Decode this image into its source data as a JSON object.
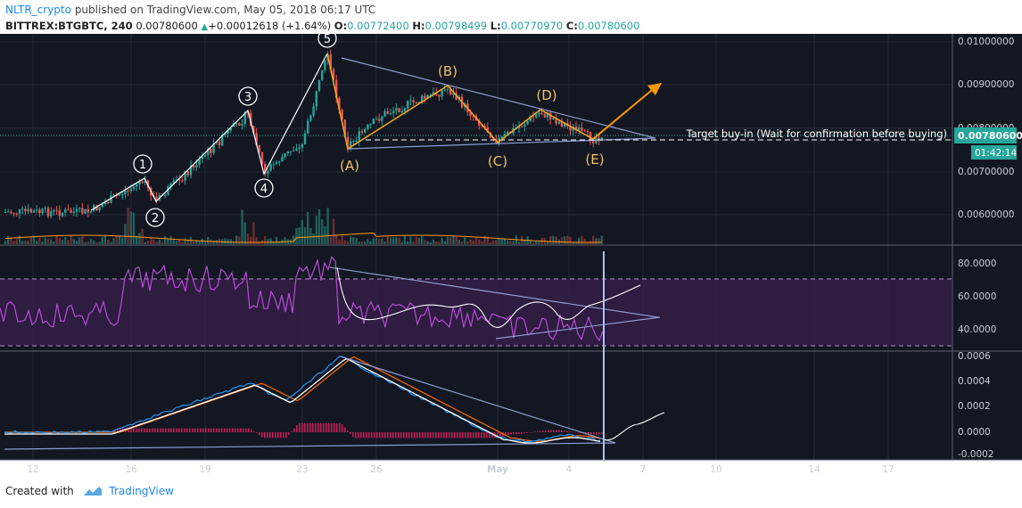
{
  "header": {
    "author": "NLTR_crypto",
    "published_text": "published on TradingView.com, May 05, 2018 06:17 UTC",
    "symbol": "BITTREX:BTGBTC, 240",
    "last": "0.00780600",
    "change": "+0.00012618 (+1.64%)",
    "o_label": "O:",
    "open": "0.00772400",
    "h_label": "H:",
    "high": "0.00798499",
    "l_label": "L:",
    "low": "0.00770970",
    "c_label": "C:",
    "close": "0.00780600",
    "up_arrow": "▲"
  },
  "price_axis": [
    "0.01000000",
    "0.00900000",
    "0.00800000",
    "0.00700000",
    "0.00600000"
  ],
  "price_tag": "0.00780600",
  "time_tag": "01:42:14",
  "rsi_axis": [
    "80.0000",
    "60.0000",
    "40.0000"
  ],
  "macd_axis": [
    "0.0006",
    "0.0004",
    "0.0002",
    "0.0000",
    "-0.0002"
  ],
  "date_axis": [
    "12",
    "16",
    "19",
    "23",
    "26",
    "May",
    "4",
    "7",
    "10",
    "14",
    "17"
  ],
  "wave_numbers": [
    "1",
    "2",
    "3",
    "4",
    "5"
  ],
  "abc_labels": [
    "(A)",
    "(B)",
    "(C)",
    "(D)",
    "(E)"
  ],
  "annotation": "Target buy-in (Wait for confirmation before buying)",
  "footer": {
    "created_with": "Created with",
    "brand": "TradingView"
  },
  "colors": {
    "up": "#26a69a",
    "down": "#ef5350",
    "wave": "#f5a623",
    "panel": "#131722",
    "rsi": "#9c27b0",
    "macd": "#2196f3",
    "signal": "#ff6d00"
  }
}
